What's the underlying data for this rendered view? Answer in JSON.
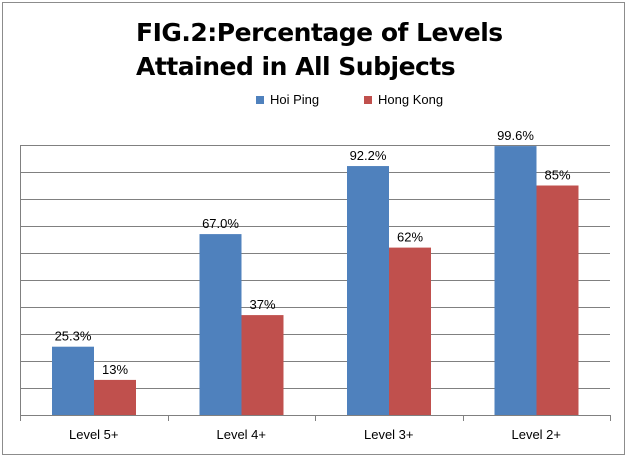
{
  "chart_data": {
    "type": "bar",
    "title_lines": [
      "FIG.2:Percentage of Levels",
      "Attained in All Subjects"
    ],
    "categories": [
      "Level 5+",
      "Level 4+",
      "Level 3+",
      "Level 2+"
    ],
    "series": [
      {
        "name": "Hoi Ping",
        "color": "#4f81bd",
        "values": [
          25.3,
          67.0,
          92.2,
          99.6
        ],
        "labels": [
          "25.3%",
          "67.0%",
          "92.2%",
          "99.6%"
        ]
      },
      {
        "name": "Hong Kong",
        "color": "#c0504d",
        "values": [
          13,
          37,
          62,
          85
        ],
        "labels": [
          "13%",
          "37%",
          "62%",
          "85%"
        ]
      }
    ],
    "ylim": [
      0,
      100
    ],
    "gridlines": 10,
    "grid": true,
    "legend_position": "top-center",
    "xlabel": "",
    "ylabel": ""
  }
}
